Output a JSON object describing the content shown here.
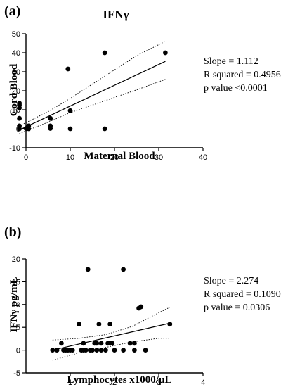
{
  "chart_data": [
    {
      "panel_label": "(a)",
      "type": "scatter",
      "title": "IFNγ",
      "xlabel": "Maternal Blood",
      "ylabel": "Cord Blood",
      "xlim": [
        0,
        40
      ],
      "ylim": [
        -10,
        50
      ],
      "xticks": [
        "0",
        "10",
        "20",
        "30",
        "40"
      ],
      "yticks": [
        "-10",
        "0",
        "10",
        "20",
        "30",
        "40",
        "50"
      ],
      "points": [
        [
          -1.5,
          13.5
        ],
        [
          -1.5,
          12.5
        ],
        [
          -1.5,
          11
        ],
        [
          -1.5,
          5.5
        ],
        [
          -1.5,
          1.5
        ],
        [
          -1.5,
          0
        ],
        [
          0,
          0.2
        ],
        [
          0.6,
          1.5
        ],
        [
          0.6,
          0
        ],
        [
          5.5,
          5.5
        ],
        [
          5.5,
          1.5
        ],
        [
          5.5,
          0.2
        ],
        [
          9.5,
          31.5
        ],
        [
          10,
          9.5
        ],
        [
          10,
          0
        ],
        [
          17.8,
          40
        ],
        [
          17.8,
          0
        ],
        [
          31.5,
          40
        ]
      ],
      "fit_line": [
        [
          -1.5,
          -0.64
        ],
        [
          31.5,
          35.5
        ]
      ],
      "ci_upper": [
        [
          -1.5,
          1.5
        ],
        [
          5,
          9
        ],
        [
          10,
          16
        ],
        [
          15,
          23.5
        ],
        [
          20,
          31
        ],
        [
          25,
          38.5
        ],
        [
          31.5,
          46
        ]
      ],
      "ci_lower": [
        [
          -1.5,
          -2.5
        ],
        [
          5,
          3.5
        ],
        [
          10,
          8.5
        ],
        [
          15,
          12.5
        ],
        [
          20,
          16.5
        ],
        [
          25,
          20.5
        ],
        [
          31.5,
          26
        ]
      ],
      "stats": [
        "Slope = 1.112",
        "R squared = 0.4956",
        "p value <0.0001"
      ],
      "grid": false
    },
    {
      "panel_label": "(b)",
      "type": "scatter",
      "title": "",
      "xlabel": "Lymphocytes x1000/μL",
      "ylabel": "IFNγ pg/mL",
      "xlim": [
        0,
        4
      ],
      "ylim": [
        -5,
        20
      ],
      "xticks": [
        "1",
        "2",
        "3",
        "4"
      ],
      "yticks": [
        "-5",
        "0",
        "5",
        "10",
        "15",
        "20"
      ],
      "points": [
        [
          0.6,
          0
        ],
        [
          0.7,
          0
        ],
        [
          0.8,
          1.5
        ],
        [
          0.85,
          0
        ],
        [
          0.9,
          0
        ],
        [
          0.95,
          0
        ],
        [
          1.0,
          0
        ],
        [
          1.05,
          0
        ],
        [
          1.2,
          5.7
        ],
        [
          1.25,
          0
        ],
        [
          1.3,
          0
        ],
        [
          1.3,
          1.5
        ],
        [
          1.35,
          0
        ],
        [
          1.4,
          17.7
        ],
        [
          1.45,
          0
        ],
        [
          1.5,
          0
        ],
        [
          1.55,
          1.5
        ],
        [
          1.6,
          1.5
        ],
        [
          1.6,
          0
        ],
        [
          1.65,
          5.7
        ],
        [
          1.7,
          1.5
        ],
        [
          1.7,
          0
        ],
        [
          1.8,
          0
        ],
        [
          1.85,
          1.5
        ],
        [
          1.9,
          5.7
        ],
        [
          1.9,
          1.5
        ],
        [
          1.95,
          1.5
        ],
        [
          2.0,
          0
        ],
        [
          2.2,
          17.7
        ],
        [
          2.2,
          0
        ],
        [
          2.35,
          1.5
        ],
        [
          2.45,
          1.5
        ],
        [
          2.45,
          0
        ],
        [
          2.55,
          9.2
        ],
        [
          2.6,
          9.5
        ],
        [
          2.7,
          0
        ],
        [
          3.25,
          5.7
        ]
      ],
      "fit_line": [
        [
          0.6,
          0.0
        ],
        [
          3.25,
          5.9
        ]
      ],
      "ci_upper": [
        [
          0.6,
          2.2
        ],
        [
          1.2,
          2.6
        ],
        [
          1.8,
          3.4
        ],
        [
          2.4,
          5.2
        ],
        [
          3.0,
          8.2
        ],
        [
          3.25,
          9.4
        ]
      ],
      "ci_lower": [
        [
          0.6,
          -2.2
        ],
        [
          1.2,
          -0.6
        ],
        [
          1.8,
          0.6
        ],
        [
          2.4,
          1.8
        ],
        [
          3.0,
          2.6
        ],
        [
          3.25,
          2.6
        ]
      ],
      "stats": [
        "Slope = 2.274",
        "R squared = 0.1090",
        "p value =  0.0306"
      ],
      "grid": false
    }
  ]
}
